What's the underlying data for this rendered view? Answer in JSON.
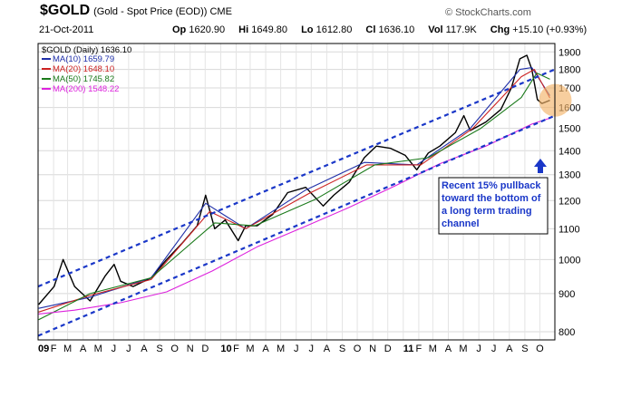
{
  "header": {
    "symbol": "$GOLD",
    "description": "(Gold - Spot Price (EOD)) CME",
    "credit": "© StockCharts.com",
    "date": "21-Oct-2011",
    "open_label": "Op",
    "open": "1620.90",
    "high_label": "Hi",
    "high": "1649.80",
    "low_label": "Lo",
    "low": "1612.80",
    "close_label": "Cl",
    "close": "1636.10",
    "volume_label": "Vol",
    "volume": "117.9K",
    "change_label": "Chg",
    "change": "+15.10 (+0.93%)"
  },
  "legend": {
    "main": "$GOLD (Daily) 1636.10",
    "items": [
      {
        "label": "MA(10) 1659.79",
        "color": "#1f2fa8"
      },
      {
        "label": "MA(20) 1648.10",
        "color": "#cc2222"
      },
      {
        "label": "MA(50) 1745.82",
        "color": "#1b7a1b"
      },
      {
        "label": "MA(200) 1548.22",
        "color": "#dd22dd"
      }
    ]
  },
  "annotation": {
    "lines": [
      "Recent 15% pullback",
      "toward the bottom of",
      "a long term trading",
      "channel"
    ],
    "arrow": "up-arrow"
  },
  "chart_data": {
    "type": "line",
    "title": "$GOLD (Gold - Spot Price (EOD)) CME",
    "y_scale": "log",
    "ylim": [
      780,
      1950
    ],
    "y_ticks": [
      800,
      900,
      1000,
      1100,
      1200,
      1300,
      1400,
      1500,
      1600,
      1700,
      1800,
      1900
    ],
    "x_tick_labels": [
      "09",
      "F",
      "M",
      "A",
      "M",
      "J",
      "J",
      "A",
      "S",
      "O",
      "N",
      "D",
      "10",
      "F",
      "M",
      "A",
      "M",
      "J",
      "J",
      "A",
      "S",
      "O",
      "N",
      "D",
      "11",
      "F",
      "M",
      "A",
      "M",
      "J",
      "J",
      "A",
      "S",
      "O"
    ],
    "x_range": [
      "2009-01-01",
      "2011-10-31"
    ],
    "series": [
      {
        "name": "$GOLD (Daily)",
        "color": "#000000",
        "x": [
          "2009-01-02",
          "2009-02-02",
          "2009-02-20",
          "2009-03-15",
          "2009-04-15",
          "2009-05-15",
          "2009-06-02",
          "2009-06-15",
          "2009-07-10",
          "2009-08-15",
          "2009-09-15",
          "2009-10-15",
          "2009-11-15",
          "2009-12-02",
          "2009-12-20",
          "2010-01-10",
          "2010-02-05",
          "2010-02-20",
          "2010-03-15",
          "2010-04-15",
          "2010-05-15",
          "2010-06-20",
          "2010-07-25",
          "2010-08-15",
          "2010-09-15",
          "2010-10-15",
          "2010-11-08",
          "2010-12-07",
          "2011-01-05",
          "2011-01-28",
          "2011-02-20",
          "2011-03-15",
          "2011-04-15",
          "2011-05-02",
          "2011-05-15",
          "2011-06-15",
          "2011-07-15",
          "2011-08-05",
          "2011-08-22",
          "2011-09-05",
          "2011-09-15",
          "2011-09-26",
          "2011-10-05",
          "2011-10-21"
        ],
        "y": [
          870,
          920,
          1000,
          920,
          880,
          950,
          985,
          935,
          920,
          945,
          1000,
          1050,
          1110,
          1220,
          1100,
          1130,
          1060,
          1110,
          1110,
          1150,
          1230,
          1250,
          1180,
          1220,
          1270,
          1370,
          1420,
          1410,
          1380,
          1320,
          1390,
          1420,
          1480,
          1560,
          1490,
          1530,
          1590,
          1700,
          1860,
          1880,
          1800,
          1640,
          1620,
          1636
        ]
      },
      {
        "name": "MA(10)",
        "color": "#1f2fa8",
        "x": [
          "2009-01-02",
          "2009-04-15",
          "2009-08-15",
          "2009-12-02",
          "2010-02-20",
          "2010-06-20",
          "2010-10-15",
          "2011-01-28",
          "2011-05-15",
          "2011-08-22",
          "2011-09-15",
          "2011-10-21"
        ],
        "y": [
          860,
          890,
          945,
          1190,
          1100,
          1240,
          1350,
          1340,
          1500,
          1800,
          1810,
          1660
        ]
      },
      {
        "name": "MA(20)",
        "color": "#cc2222",
        "x": [
          "2009-01-02",
          "2009-04-15",
          "2009-08-15",
          "2009-12-10",
          "2010-02-20",
          "2010-06-25",
          "2010-10-20",
          "2011-02-05",
          "2011-05-20",
          "2011-08-25",
          "2011-09-20",
          "2011-10-21"
        ],
        "y": [
          850,
          895,
          940,
          1160,
          1100,
          1225,
          1340,
          1340,
          1500,
          1760,
          1800,
          1648
        ]
      },
      {
        "name": "MA(50)",
        "color": "#1b7a1b",
        "x": [
          "2009-01-02",
          "2009-04-15",
          "2009-08-15",
          "2009-12-20",
          "2010-03-10",
          "2010-07-10",
          "2010-11-05",
          "2011-02-20",
          "2011-06-05",
          "2011-08-25",
          "2011-09-25",
          "2011-10-21"
        ],
        "y": [
          830,
          900,
          945,
          1120,
          1110,
          1205,
          1340,
          1370,
          1500,
          1650,
          1780,
          1746
        ]
      },
      {
        "name": "MA(200)",
        "color": "#dd22dd",
        "x": [
          "2009-01-02",
          "2009-03-15",
          "2009-06-15",
          "2009-09-15",
          "2009-12-15",
          "2010-03-15",
          "2010-06-15",
          "2010-09-15",
          "2010-12-15",
          "2011-03-15",
          "2011-06-15",
          "2011-09-15",
          "2011-10-21"
        ],
        "y": [
          845,
          855,
          875,
          905,
          965,
          1040,
          1105,
          1175,
          1255,
          1345,
          1420,
          1520,
          1548
        ]
      }
    ],
    "channel_lines": [
      {
        "name": "upper-channel",
        "x": [
          "2009-01-01",
          "2011-10-31"
        ],
        "y": [
          920,
          1800
        ]
      },
      {
        "name": "lower-channel",
        "x": [
          "2009-01-01",
          "2011-10-31"
        ],
        "y": [
          790,
          1560
        ]
      }
    ]
  }
}
